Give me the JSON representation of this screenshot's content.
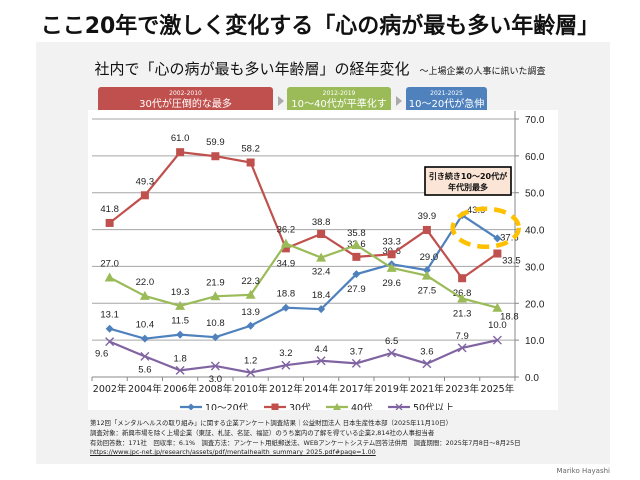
{
  "header": {
    "main_title": "ここ20年で激しく変化する「心の病が最も多い年齢層」",
    "subtitle": "社内で「心の病が最も多い年齢層」の経年変化",
    "subtitle_note": "～上場企業の人事に訊いた調査"
  },
  "phases": [
    {
      "years": "2002-2010",
      "label": "30代が圧倒的な最多",
      "color": "#c0504d"
    },
    {
      "years": "2012-2019",
      "label": "10～40代が平準化する",
      "color": "#9bbb59"
    },
    {
      "years": "2021-2025",
      "label": "10～20代が急伸",
      "color": "#4f81bd"
    }
  ],
  "callout": {
    "line1": "引き続き10～20代が",
    "line2": "年代別最多"
  },
  "chart_data": {
    "type": "line",
    "title": "社内で「心の病が最も多い年齢層」の経年変化",
    "xlabel": "",
    "ylabel": "",
    "categories": [
      "2002年",
      "2004年",
      "2006年",
      "2008年",
      "2010年",
      "2012年",
      "2014年",
      "2017年",
      "2019年",
      "2021年",
      "2023年",
      "2025年"
    ],
    "ylim": [
      0,
      70
    ],
    "yticks": [
      "0.0",
      "10.0",
      "20.0",
      "30.0",
      "40.0",
      "50.0",
      "60.0",
      "70.0"
    ],
    "y_axis_side": "right",
    "grid": true,
    "legend_position": "bottom",
    "series": [
      {
        "name": "10～20代",
        "color": "#4f81bd",
        "marker": "diamond",
        "values": [
          13.1,
          10.4,
          11.5,
          10.8,
          13.9,
          18.8,
          18.4,
          27.9,
          30.6,
          29.0,
          43.9,
          37.6
        ]
      },
      {
        "name": "30代",
        "color": "#c0504d",
        "marker": "square",
        "values": [
          41.8,
          49.3,
          61.0,
          59.9,
          58.2,
          34.9,
          38.8,
          32.6,
          33.3,
          39.9,
          26.8,
          33.5
        ]
      },
      {
        "name": "40代",
        "color": "#9bbb59",
        "marker": "triangle",
        "values": [
          27.0,
          22.0,
          19.3,
          21.9,
          22.3,
          36.2,
          32.4,
          35.8,
          29.6,
          27.5,
          21.3,
          18.8
        ]
      },
      {
        "name": "50代以上",
        "color": "#8064a2",
        "marker": "x",
        "values": [
          9.6,
          5.6,
          1.8,
          3.0,
          1.2,
          3.2,
          4.4,
          3.7,
          6.5,
          3.6,
          7.9,
          10.0
        ]
      }
    ],
    "annotations": [
      "引き続き10～20代が 年代別最多"
    ]
  },
  "source": {
    "line1": "第12回「メンタルヘルスの取り組み」に関する企業アンケート調査結果｜公益財団法人 日本生産性本部（2025年11月10日）",
    "line2": "調査対象：新興市場を除く上場企業（東証、札証、名証、福証）のうち案内の了解を得ている企業2,814社の人事担当者",
    "line3": "有効回答数：171社　回収率：6.1%　調査方法：アンケート用紙郵送法、WEBアンケートシステム回答法併用　調査期間：2025年7月8日～8月25日",
    "link": "https://www.jpc-net.jp/research/assets/pdf/mentalhealth_summary_2025.pdf#page=1.00"
  },
  "author": "Mariko Hayashi"
}
